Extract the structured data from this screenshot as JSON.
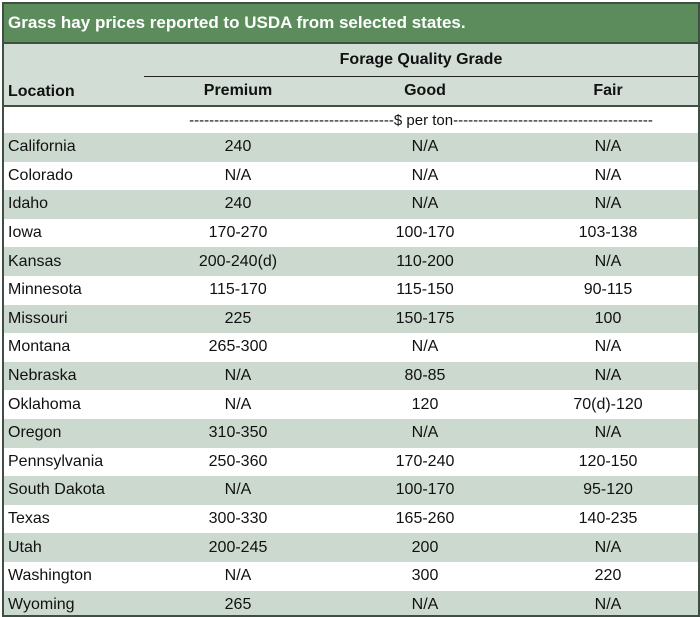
{
  "title": "Grass hay prices reported to USDA from selected states.",
  "header": {
    "group_label": "Forage Quality Grade",
    "location_label": "Location",
    "columns": [
      "Premium",
      "Good",
      "Fair"
    ],
    "units": "-----------------------------------------$ per ton----------------------------------------"
  },
  "rows": [
    {
      "location": "California",
      "premium": "240",
      "good": "N/A",
      "fair": "N/A"
    },
    {
      "location": "Colorado",
      "premium": "N/A",
      "good": "N/A",
      "fair": "N/A"
    },
    {
      "location": "Idaho",
      "premium": "240",
      "good": "N/A",
      "fair": "N/A"
    },
    {
      "location": "Iowa",
      "premium": "170-270",
      "good": "100-170",
      "fair": "103-138"
    },
    {
      "location": "Kansas",
      "premium": "200-240(d)",
      "good": "110-200",
      "fair": "N/A"
    },
    {
      "location": "Minnesota",
      "premium": "115-170",
      "good": "115-150",
      "fair": "90-115"
    },
    {
      "location": "Missouri",
      "premium": "225",
      "good": "150-175",
      "fair": "100"
    },
    {
      "location": "Montana",
      "premium": "265-300",
      "good": "N/A",
      "fair": "N/A"
    },
    {
      "location": "Nebraska",
      "premium": "N/A",
      "good": "80-85",
      "fair": "N/A"
    },
    {
      "location": "Oklahoma",
      "premium": "N/A",
      "good": "120",
      "fair": "70(d)-120"
    },
    {
      "location": "Oregon",
      "premium": "310-350",
      "good": "N/A",
      "fair": "N/A"
    },
    {
      "location": "Pennsylvania",
      "premium": "250-360",
      "good": "170-240",
      "fair": "120-150"
    },
    {
      "location": "South Dakota",
      "premium": "N/A",
      "good": "100-170",
      "fair": "95-120"
    },
    {
      "location": "Texas",
      "premium": "300-330",
      "good": "165-260",
      "fair": "140-235"
    },
    {
      "location": "Utah",
      "premium": "200-245",
      "good": "200",
      "fair": "N/A"
    },
    {
      "location": "Washington",
      "premium": "N/A",
      "good": "300",
      "fair": "220"
    },
    {
      "location": "Wyoming",
      "premium": "265",
      "good": "N/A",
      "fair": "N/A"
    }
  ]
}
